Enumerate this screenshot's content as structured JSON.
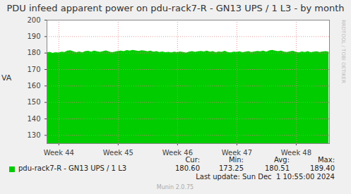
{
  "chart_data": {
    "type": "area",
    "title": "PDU infeed apparent power on pdu-rack7-R - GN13 UPS / 1 L3 - by month",
    "y_label": "VA",
    "x": [
      43.8,
      43.85,
      43.9,
      43.95,
      44,
      44.05,
      44.1,
      44.15,
      44.2,
      44.25,
      44.3,
      44.35,
      44.4,
      44.45,
      44.5,
      44.55,
      44.6,
      44.65,
      44.7,
      44.75,
      44.8,
      44.85,
      44.9,
      44.95,
      45,
      45.05,
      45.1,
      45.15,
      45.2,
      45.25,
      45.3,
      45.35,
      45.4,
      45.45,
      45.5,
      45.55,
      45.6,
      45.65,
      45.7,
      45.75,
      45.8,
      45.85,
      45.9,
      45.95,
      46,
      46.05,
      46.1,
      46.15,
      46.2,
      46.25,
      46.3,
      46.35,
      46.4,
      46.45,
      46.5,
      46.55,
      46.6,
      46.65,
      46.7,
      46.75,
      46.8,
      46.85,
      46.9,
      46.95,
      47,
      47.05,
      47.1,
      47.15,
      47.2,
      47.25,
      47.3,
      47.35,
      47.4,
      47.45,
      47.5,
      47.55,
      47.6,
      47.65,
      47.7,
      47.75,
      47.8,
      47.85,
      47.9,
      47.95,
      48,
      48.05,
      48.1,
      48.15,
      48.2,
      48.25,
      48.3,
      48.35,
      48.4,
      48.45,
      48.5,
      48.55
    ],
    "series": [
      {
        "name": "pdu-rack7-R - GN13 UPS / 1 L3",
        "color": "#00cc00",
        "values": [
          180.2,
          180.5,
          179.9,
          180.3,
          180.1,
          180.6,
          180.4,
          181.2,
          181.5,
          180.8,
          180.3,
          180.7,
          180.2,
          180.9,
          181.1,
          180.6,
          181.3,
          180.8,
          180.5,
          180.9,
          181.4,
          180.7,
          180.3,
          180.6,
          181.0,
          181.3,
          180.9,
          181.6,
          181.2,
          181.7,
          181.4,
          181.0,
          181.5,
          181.3,
          180.8,
          181.2,
          180.6,
          180.9,
          180.4,
          180.7,
          180.3,
          180.5,
          180.2,
          180.6,
          180.3,
          180.7,
          180.4,
          180.1,
          180.6,
          180.9,
          180.5,
          180.8,
          181.0,
          180.7,
          181.2,
          180.6,
          180.9,
          180.3,
          180.7,
          180.5,
          181.1,
          180.4,
          180.2,
          180.6,
          180.5,
          180.8,
          180.3,
          180.6,
          180.9,
          180.4,
          180.7,
          181.0,
          180.8,
          181.2,
          180.6,
          181.4,
          181.7,
          181.2,
          180.9,
          181.3,
          180.6,
          180.4,
          180.8,
          181.1,
          180.5,
          180.2,
          180.7,
          180.4,
          180.9,
          180.3,
          180.6,
          180.8,
          180.4,
          180.7,
          180.9,
          180.6
        ]
      }
    ],
    "xlim": [
      43.8,
      48.56
    ],
    "xticks": [
      {
        "value": 44,
        "label": "Week 44"
      },
      {
        "value": 45,
        "label": "Week 45"
      },
      {
        "value": 46,
        "label": "Week 46"
      },
      {
        "value": 47,
        "label": "Week 47"
      },
      {
        "value": 48,
        "label": "Week 48"
      }
    ],
    "ylim": [
      125,
      200
    ],
    "yticks": [
      130,
      140,
      150,
      160,
      170,
      180,
      190,
      200
    ],
    "grid": true,
    "legend_stats": {
      "headers": [
        "Cur:",
        "Min:",
        "Avg:",
        "Max:"
      ],
      "values": [
        "180.60",
        "173.25",
        "180.51",
        "189.40"
      ]
    },
    "last_update": "Last update: Sun Dec  1 10:55:00 2024",
    "watermark": "RRDTOOL / TOBI OETIKER",
    "generator": "Munin 2.0.75"
  }
}
